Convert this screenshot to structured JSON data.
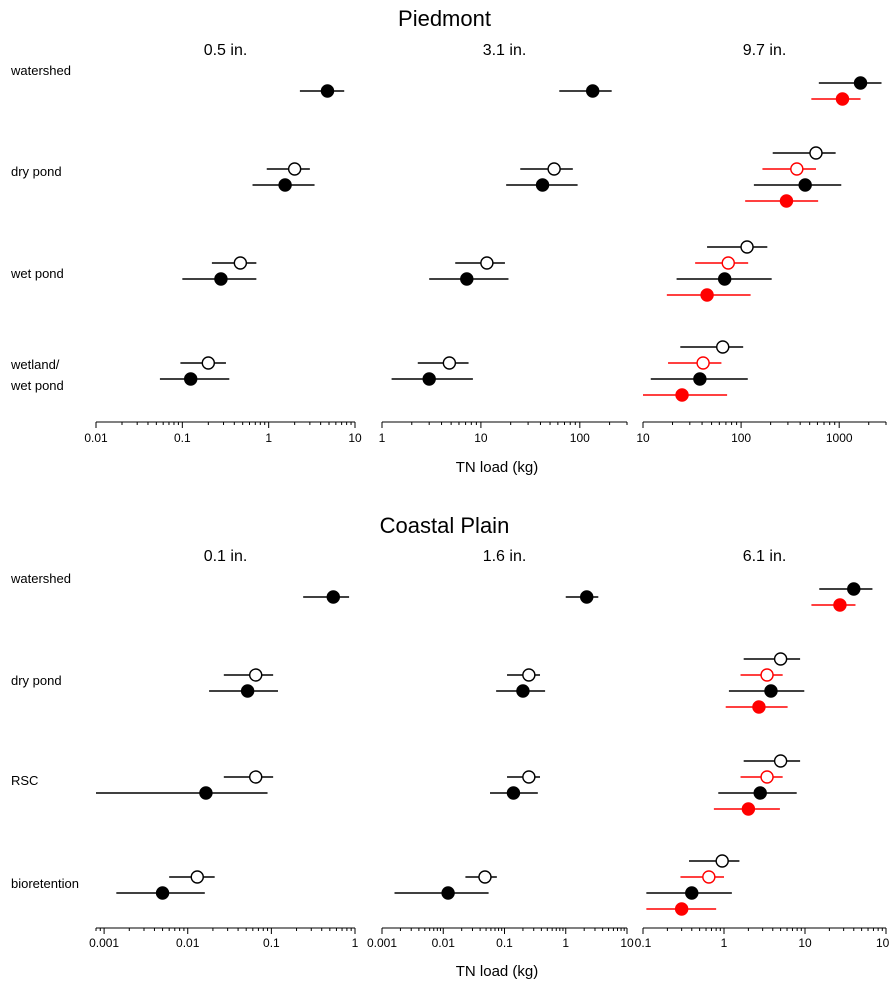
{
  "colors": {
    "black": "#000000",
    "red": "#ff0000",
    "background": "#ffffff"
  },
  "xlabel": "TN load (kg)",
  "chart_data": [
    {
      "type": "scatter",
      "title": "Piedmont",
      "row_labels": [
        "watershed",
        "dry pond",
        "wet pond",
        "wetland/\nwet pond"
      ],
      "panels": [
        {
          "title": "0.5 in.",
          "xscale": "log",
          "xlim": [
            0.01,
            10
          ],
          "tick_values": [
            0.01,
            0.1,
            1,
            10
          ],
          "tick_labels": [
            "0.01",
            "0.1",
            "1",
            "10"
          ],
          "points": [
            {
              "row": 0,
              "slot": 0.5,
              "style": "filled",
              "color": "black",
              "value": 4.8,
              "low": 2.3,
              "high": 7.5
            },
            {
              "row": 1,
              "slot": 0,
              "style": "open",
              "color": "black",
              "value": 2.0,
              "low": 0.95,
              "high": 3.0
            },
            {
              "row": 1,
              "slot": 1,
              "style": "filled",
              "color": "black",
              "value": 1.55,
              "low": 0.65,
              "high": 3.4
            },
            {
              "row": 2,
              "slot": 0,
              "style": "open",
              "color": "black",
              "value": 0.47,
              "low": 0.22,
              "high": 0.72
            },
            {
              "row": 2,
              "slot": 1,
              "style": "filled",
              "color": "black",
              "value": 0.28,
              "low": 0.1,
              "high": 0.72
            },
            {
              "row": 3,
              "slot": 0,
              "style": "open",
              "color": "black",
              "value": 0.2,
              "low": 0.095,
              "high": 0.32
            },
            {
              "row": 3,
              "slot": 1,
              "style": "filled",
              "color": "black",
              "value": 0.125,
              "low": 0.055,
              "high": 0.35
            }
          ]
        },
        {
          "title": "3.1 in.",
          "xscale": "log",
          "xlim": [
            1,
            300
          ],
          "tick_values": [
            1,
            10,
            100
          ],
          "tick_labels": [
            "1",
            "10",
            "100"
          ],
          "points": [
            {
              "row": 0,
              "slot": 0.5,
              "style": "filled",
              "color": "black",
              "value": 135,
              "low": 62,
              "high": 210
            },
            {
              "row": 1,
              "slot": 0,
              "style": "open",
              "color": "black",
              "value": 55,
              "low": 25,
              "high": 85
            },
            {
              "row": 1,
              "slot": 1,
              "style": "filled",
              "color": "black",
              "value": 42,
              "low": 18,
              "high": 95
            },
            {
              "row": 2,
              "slot": 0,
              "style": "open",
              "color": "black",
              "value": 11.5,
              "low": 5.5,
              "high": 17.5
            },
            {
              "row": 2,
              "slot": 1,
              "style": "filled",
              "color": "black",
              "value": 7.2,
              "low": 3.0,
              "high": 19
            },
            {
              "row": 3,
              "slot": 0,
              "style": "open",
              "color": "black",
              "value": 4.8,
              "low": 2.3,
              "high": 7.5
            },
            {
              "row": 3,
              "slot": 1,
              "style": "filled",
              "color": "black",
              "value": 3.0,
              "low": 1.25,
              "high": 8.3
            }
          ]
        },
        {
          "title": "9.7 in.",
          "xscale": "log",
          "xlim": [
            10,
            3000
          ],
          "tick_values": [
            10,
            100,
            1000
          ],
          "tick_labels": [
            "10",
            "100",
            "1000"
          ],
          "points": [
            {
              "row": 0,
              "slot": 0,
              "style": "filled",
              "color": "black",
              "value": 1650,
              "low": 620,
              "high": 2700
            },
            {
              "row": 0,
              "slot": 1,
              "style": "filled",
              "color": "red",
              "value": 1080,
              "low": 520,
              "high": 1650
            },
            {
              "row": 1,
              "slot": 0,
              "style": "open",
              "color": "black",
              "value": 580,
              "low": 210,
              "high": 920
            },
            {
              "row": 1,
              "slot": 1,
              "style": "open",
              "color": "red",
              "value": 370,
              "low": 165,
              "high": 580
            },
            {
              "row": 1,
              "slot": 2,
              "style": "filled",
              "color": "black",
              "value": 450,
              "low": 135,
              "high": 1050
            },
            {
              "row": 1,
              "slot": 3,
              "style": "filled",
              "color": "red",
              "value": 290,
              "low": 110,
              "high": 610
            },
            {
              "row": 2,
              "slot": 0,
              "style": "open",
              "color": "black",
              "value": 115,
              "low": 45,
              "high": 185
            },
            {
              "row": 2,
              "slot": 1,
              "style": "open",
              "color": "red",
              "value": 74,
              "low": 34,
              "high": 118
            },
            {
              "row": 2,
              "slot": 2,
              "style": "filled",
              "color": "black",
              "value": 68,
              "low": 22,
              "high": 205
            },
            {
              "row": 2,
              "slot": 3,
              "style": "filled",
              "color": "red",
              "value": 45,
              "low": 17.5,
              "high": 125
            },
            {
              "row": 3,
              "slot": 0,
              "style": "open",
              "color": "black",
              "value": 65,
              "low": 24,
              "high": 105
            },
            {
              "row": 3,
              "slot": 1,
              "style": "open",
              "color": "red",
              "value": 41,
              "low": 18,
              "high": 63
            },
            {
              "row": 3,
              "slot": 2,
              "style": "filled",
              "color": "black",
              "value": 38,
              "low": 12,
              "high": 117
            },
            {
              "row": 3,
              "slot": 3,
              "style": "filled",
              "color": "red",
              "value": 25,
              "low": 10,
              "high": 72
            }
          ]
        }
      ]
    },
    {
      "type": "scatter",
      "title": "Coastal Plain",
      "row_labels": [
        "watershed",
        "dry pond",
        "RSC",
        "bioretention"
      ],
      "panels": [
        {
          "title": "0.1 in.",
          "xscale": "log",
          "xlim": [
            0.0008,
            1
          ],
          "tick_values": [
            0.001,
            0.01,
            0.1,
            1
          ],
          "tick_labels": [
            "0.001",
            "0.01",
            "0.1",
            "1"
          ],
          "points": [
            {
              "row": 0,
              "slot": 0.5,
              "style": "filled",
              "color": "black",
              "value": 0.55,
              "low": 0.24,
              "high": 0.85
            },
            {
              "row": 1,
              "slot": 0,
              "style": "open",
              "color": "black",
              "value": 0.065,
              "low": 0.027,
              "high": 0.105
            },
            {
              "row": 1,
              "slot": 1,
              "style": "filled",
              "color": "black",
              "value": 0.052,
              "low": 0.018,
              "high": 0.12
            },
            {
              "row": 2,
              "slot": 0,
              "style": "open",
              "color": "black",
              "value": 0.065,
              "low": 0.027,
              "high": 0.105
            },
            {
              "row": 2,
              "slot": 1,
              "style": "filled",
              "color": "black",
              "value": 0.0165,
              "low": 0.0008,
              "high": 0.09
            },
            {
              "row": 3,
              "slot": 0,
              "style": "open",
              "color": "black",
              "value": 0.013,
              "low": 0.006,
              "high": 0.021
            },
            {
              "row": 3,
              "slot": 1,
              "style": "filled",
              "color": "black",
              "value": 0.005,
              "low": 0.0014,
              "high": 0.016
            }
          ]
        },
        {
          "title": "1.6 in.",
          "xscale": "log",
          "xlim": [
            0.001,
            10
          ],
          "tick_values": [
            0.001,
            0.01,
            0.1,
            1,
            10
          ],
          "tick_labels": [
            "0.001",
            "0.01",
            "0.1",
            "1",
            "10"
          ],
          "points": [
            {
              "row": 0,
              "slot": 0.5,
              "style": "filled",
              "color": "black",
              "value": 2.2,
              "low": 1.0,
              "high": 3.4
            },
            {
              "row": 1,
              "slot": 0,
              "style": "open",
              "color": "black",
              "value": 0.25,
              "low": 0.11,
              "high": 0.38
            },
            {
              "row": 1,
              "slot": 1,
              "style": "filled",
              "color": "black",
              "value": 0.2,
              "low": 0.073,
              "high": 0.46
            },
            {
              "row": 2,
              "slot": 0,
              "style": "open",
              "color": "black",
              "value": 0.25,
              "low": 0.11,
              "high": 0.38
            },
            {
              "row": 2,
              "slot": 1,
              "style": "filled",
              "color": "black",
              "value": 0.14,
              "low": 0.058,
              "high": 0.35
            },
            {
              "row": 3,
              "slot": 0,
              "style": "open",
              "color": "black",
              "value": 0.048,
              "low": 0.023,
              "high": 0.075
            },
            {
              "row": 3,
              "slot": 1,
              "style": "filled",
              "color": "black",
              "value": 0.012,
              "low": 0.0016,
              "high": 0.055
            }
          ]
        },
        {
          "title": "6.1 in.",
          "xscale": "log",
          "xlim": [
            0.1,
            100
          ],
          "tick_values": [
            0.1,
            1,
            10,
            100
          ],
          "tick_labels": [
            "0.1",
            "1",
            "10",
            "100"
          ],
          "points": [
            {
              "row": 0,
              "slot": 0,
              "style": "filled",
              "color": "black",
              "value": 40,
              "low": 15,
              "high": 68
            },
            {
              "row": 0,
              "slot": 1,
              "style": "filled",
              "color": "red",
              "value": 27,
              "low": 12,
              "high": 42
            },
            {
              "row": 1,
              "slot": 0,
              "style": "open",
              "color": "black",
              "value": 5.0,
              "low": 1.75,
              "high": 8.7
            },
            {
              "row": 1,
              "slot": 1,
              "style": "open",
              "color": "red",
              "value": 3.4,
              "low": 1.6,
              "high": 5.3
            },
            {
              "row": 1,
              "slot": 2,
              "style": "filled",
              "color": "black",
              "value": 3.8,
              "low": 1.15,
              "high": 9.8
            },
            {
              "row": 1,
              "slot": 3,
              "style": "filled",
              "color": "red",
              "value": 2.7,
              "low": 1.05,
              "high": 6.1
            },
            {
              "row": 2,
              "slot": 0,
              "style": "open",
              "color": "black",
              "value": 5.0,
              "low": 1.75,
              "high": 8.7
            },
            {
              "row": 2,
              "slot": 1,
              "style": "open",
              "color": "red",
              "value": 3.4,
              "low": 1.6,
              "high": 5.3
            },
            {
              "row": 2,
              "slot": 2,
              "style": "filled",
              "color": "black",
              "value": 2.8,
              "low": 0.85,
              "high": 7.9
            },
            {
              "row": 2,
              "slot": 3,
              "style": "filled",
              "color": "red",
              "value": 2.0,
              "low": 0.75,
              "high": 4.9
            },
            {
              "row": 3,
              "slot": 0,
              "style": "open",
              "color": "black",
              "value": 0.95,
              "low": 0.37,
              "high": 1.55
            },
            {
              "row": 3,
              "slot": 1,
              "style": "open",
              "color": "red",
              "value": 0.65,
              "low": 0.29,
              "high": 1.0
            },
            {
              "row": 3,
              "slot": 2,
              "style": "filled",
              "color": "black",
              "value": 0.4,
              "low": 0.11,
              "high": 1.25
            },
            {
              "row": 3,
              "slot": 3,
              "style": "filled",
              "color": "red",
              "value": 0.3,
              "low": 0.11,
              "high": 0.8
            }
          ]
        }
      ]
    }
  ]
}
